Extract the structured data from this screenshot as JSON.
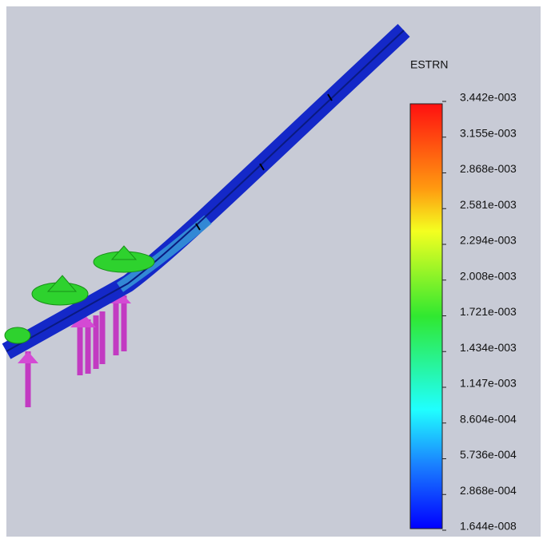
{
  "legend": {
    "title": "ESTRN",
    "labels": [
      "3.442e-003",
      "3.155e-003",
      "2.868e-003",
      "2.581e-003",
      "2.294e-003",
      "2.008e-003",
      "1.721e-003",
      "1.434e-003",
      "1.147e-003",
      "8.604e-004",
      "5.736e-004",
      "2.868e-004",
      "1.644e-008"
    ]
  }
}
